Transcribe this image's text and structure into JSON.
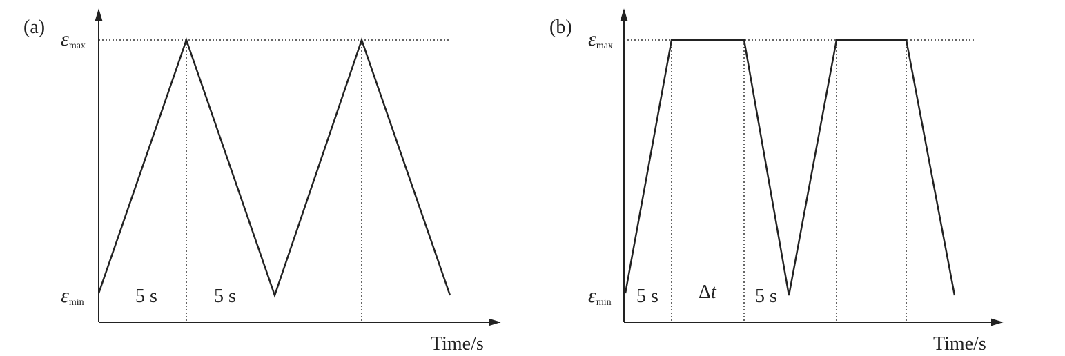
{
  "panels": [
    {
      "label": "(a)",
      "y_max": {
        "symbol": "ε",
        "sub": "max"
      },
      "y_min": {
        "symbol": "ε",
        "sub": "min"
      },
      "annotations": [
        "5 s",
        "5 s"
      ],
      "x_axis_label": "Time/s"
    },
    {
      "label": "(b)",
      "y_max": {
        "symbol": "ε",
        "sub": "max"
      },
      "y_min": {
        "symbol": "ε",
        "sub": "min"
      },
      "annotations": [
        "5 s",
        {
          "delta": "Δ",
          "var": "t"
        },
        "5 s"
      ],
      "x_axis_label": "Time/s"
    }
  ]
}
